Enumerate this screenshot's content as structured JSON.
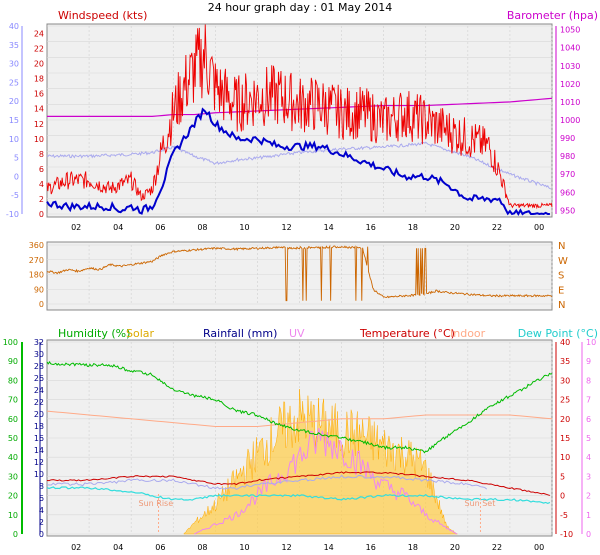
{
  "title": "24 hour graph day : 01 May 2014",
  "colors": {
    "wind_axis": "#8888ff",
    "baro_axis": "#cc00cc",
    "wind_avg": "#0000cc",
    "wind_gust": "#ee0000",
    "baro": "#cc00cc",
    "outdoor_temp": "#aaaaee",
    "winddir": "#cc6600",
    "humidity": "#00bb00",
    "solar": "#ffcc44",
    "rainfall": "#000088",
    "uv": "#ee88ee",
    "temperature": "#cc0000",
    "indoor": "#ffaa88",
    "dewpoint": "#33dddd"
  },
  "chart_data": [
    {
      "type": "line",
      "name": "wind-baro",
      "title": "",
      "labels": {
        "left": "Windspeed (kts)",
        "right": "Barometer (hpa)"
      },
      "x_ticks": [
        "02",
        "04",
        "06",
        "08",
        "10",
        "12",
        "14",
        "16",
        "18",
        "20",
        "22",
        "00"
      ],
      "y_left_ticks": [
        "0",
        "2",
        "4",
        "6",
        "8",
        "10",
        "12",
        "14",
        "16",
        "18",
        "20",
        "22",
        "24"
      ],
      "y_left_outer_ticks": [
        "-10",
        "-5",
        "0",
        "5",
        "10",
        "15",
        "20",
        "25",
        "30",
        "35",
        "40"
      ],
      "y_right_ticks": [
        "950",
        "960",
        "970",
        "980",
        "990",
        "1000",
        "1010",
        "1020",
        "1030",
        "1040",
        "1050"
      ],
      "ylim_left": [
        0,
        25
      ],
      "ylim_right": [
        948,
        1052
      ],
      "series": [
        {
          "key": "gust",
          "x": [
            0,
            1,
            2,
            3,
            4,
            4.5,
            5,
            5.5,
            6,
            6.5,
            7,
            7.5,
            8,
            9,
            10,
            11,
            12,
            13,
            14,
            15,
            16,
            17,
            18,
            19,
            20,
            21,
            21.5,
            22,
            23,
            24
          ],
          "values": [
            3,
            4,
            4,
            3,
            4,
            2,
            3,
            8,
            12,
            15,
            17,
            19,
            15,
            13,
            14,
            14,
            13,
            13,
            12,
            12,
            11,
            12,
            11,
            10,
            9,
            8,
            5,
            1,
            1,
            1
          ]
        },
        {
          "key": "avg",
          "x": [
            0,
            1,
            2,
            3,
            3.5,
            4,
            4.5,
            5,
            5.5,
            6,
            6.5,
            7,
            7.5,
            8,
            9,
            10,
            11,
            12,
            13,
            14,
            15,
            16,
            17,
            18,
            19,
            20,
            21,
            21.5,
            22,
            23,
            24
          ],
          "values": [
            1.5,
            1,
            1,
            1,
            0.5,
            1,
            0.5,
            1,
            4,
            8,
            10,
            12,
            14,
            12,
            10,
            10,
            9,
            9,
            9,
            8,
            7,
            6,
            5,
            5,
            4,
            2,
            2,
            2,
            0,
            0,
            0
          ]
        },
        {
          "key": "baro",
          "x": [
            0,
            5,
            6,
            7,
            8,
            10,
            12,
            14,
            16,
            18,
            20,
            22,
            24
          ],
          "values": [
            1002,
            1002,
            1003,
            1003,
            1004,
            1005,
            1006,
            1007,
            1008,
            1008,
            1009,
            1010,
            1012
          ]
        },
        {
          "key": "outdoor",
          "x": [
            0,
            2,
            4,
            5,
            6,
            7,
            8,
            9,
            10,
            12,
            14,
            16,
            18,
            20,
            22,
            24
          ],
          "values": [
            980,
            980,
            981,
            982,
            985,
            980,
            976,
            978,
            979,
            982,
            984,
            985,
            987,
            980,
            970,
            962
          ]
        }
      ]
    },
    {
      "type": "line",
      "name": "wind-direction",
      "title": "",
      "y_left_ticks": [
        "0",
        "90",
        "180",
        "270",
        "360"
      ],
      "y_right_labels": [
        "N",
        "W",
        "S",
        "E",
        "N"
      ],
      "ylim": [
        0,
        360
      ],
      "series": [
        {
          "key": "dir",
          "x": [
            0,
            0.5,
            1,
            1.5,
            2,
            2.5,
            3,
            3.5,
            4,
            5,
            5.5,
            6,
            7,
            8,
            9,
            10,
            11,
            12,
            13,
            14,
            15,
            15.5,
            16,
            17,
            18,
            18.5,
            19,
            20,
            21,
            22,
            23,
            24
          ],
          "values": [
            200,
            190,
            210,
            200,
            220,
            210,
            240,
            230,
            240,
            260,
            300,
            320,
            330,
            340,
            335,
            340,
            345,
            340,
            345,
            350,
            340,
            90,
            40,
            50,
            60,
            80,
            70,
            60,
            50,
            50,
            50,
            50
          ]
        }
      ]
    },
    {
      "type": "area",
      "name": "multi",
      "title": "",
      "labels": {
        "humidity": "Humidity (%)",
        "solar": "Solar",
        "rainfall": "Rainfall (mm)",
        "uv": "UV",
        "temperature": "Temperature (°C)",
        "indoor": "Indoor",
        "dewpoint": "Dew Point (°C)"
      },
      "annotations": {
        "sunrise": "Sun Rise",
        "sunset": "Sun Set"
      },
      "y_left_ticks": [
        "0",
        "10",
        "20",
        "30",
        "40",
        "50",
        "60",
        "70",
        "80",
        "90",
        "100"
      ],
      "y_rain_ticks": [
        "0",
        "2",
        "4",
        "6",
        "8",
        "10",
        "12",
        "14",
        "16",
        "18",
        "20",
        "22",
        "24",
        "26",
        "28",
        "30",
        "32"
      ],
      "y_temp_ticks": [
        "-10",
        "-5",
        "0",
        "5",
        "10",
        "15",
        "20",
        "25",
        "30",
        "35",
        "40"
      ],
      "y_uv_ticks": [
        "0",
        "1",
        "2",
        "3",
        "4",
        "5",
        "6",
        "7",
        "8",
        "9",
        "10"
      ],
      "ylim_humidity": [
        0,
        100
      ],
      "ylim_temp": [
        -10,
        40
      ],
      "series": [
        {
          "key": "humidity",
          "x": [
            0,
            2,
            3,
            4,
            5,
            6,
            7,
            8,
            9,
            10,
            11,
            12,
            13,
            14,
            15,
            16,
            17,
            18,
            19,
            20,
            21,
            22,
            23,
            24
          ],
          "values": [
            89,
            88,
            88,
            85,
            83,
            75,
            72,
            70,
            64,
            62,
            57,
            54,
            52,
            50,
            48,
            45,
            45,
            43,
            51,
            58,
            66,
            72,
            78,
            84
          ]
        },
        {
          "key": "temperature",
          "x": [
            0,
            2,
            4,
            6,
            8,
            9,
            10,
            12,
            14,
            16,
            18,
            20,
            21,
            22,
            23,
            24
          ],
          "values": [
            4,
            4,
            5,
            5,
            3,
            3,
            4,
            5,
            6,
            6,
            5,
            4,
            3,
            2,
            1,
            0
          ]
        },
        {
          "key": "dewpoint",
          "x": [
            0,
            2,
            4,
            5,
            6,
            7,
            8,
            10,
            12,
            14,
            16,
            18,
            20,
            22,
            24
          ],
          "values": [
            2,
            2,
            1,
            0,
            -1,
            -1,
            0,
            0,
            0,
            -1,
            0,
            0,
            -1,
            -1,
            -2
          ]
        },
        {
          "key": "indoor",
          "x": [
            0,
            4,
            6,
            8,
            10,
            12,
            14,
            16,
            18,
            20,
            22,
            24
          ],
          "values": [
            22,
            20,
            19,
            18,
            18,
            19,
            20,
            20,
            21,
            21,
            21,
            20
          ]
        },
        {
          "key": "solar",
          "x": [
            6.5,
            7,
            8,
            9,
            10,
            11,
            12,
            13,
            14,
            15,
            16,
            17,
            18,
            18.5,
            19,
            19.5
          ],
          "values": [
            0,
            3,
            8,
            15,
            22,
            28,
            32,
            30,
            28,
            27,
            24,
            22,
            18,
            10,
            2,
            0
          ]
        },
        {
          "key": "uv",
          "x": [
            7,
            8,
            9,
            10,
            11,
            12,
            13,
            14,
            15,
            16,
            17,
            18,
            19,
            19.5
          ],
          "values": [
            0,
            0.5,
            1,
            2,
            3,
            4,
            5,
            4.5,
            3.5,
            2.5,
            2,
            1,
            0.3,
            0
          ]
        }
      ]
    }
  ]
}
